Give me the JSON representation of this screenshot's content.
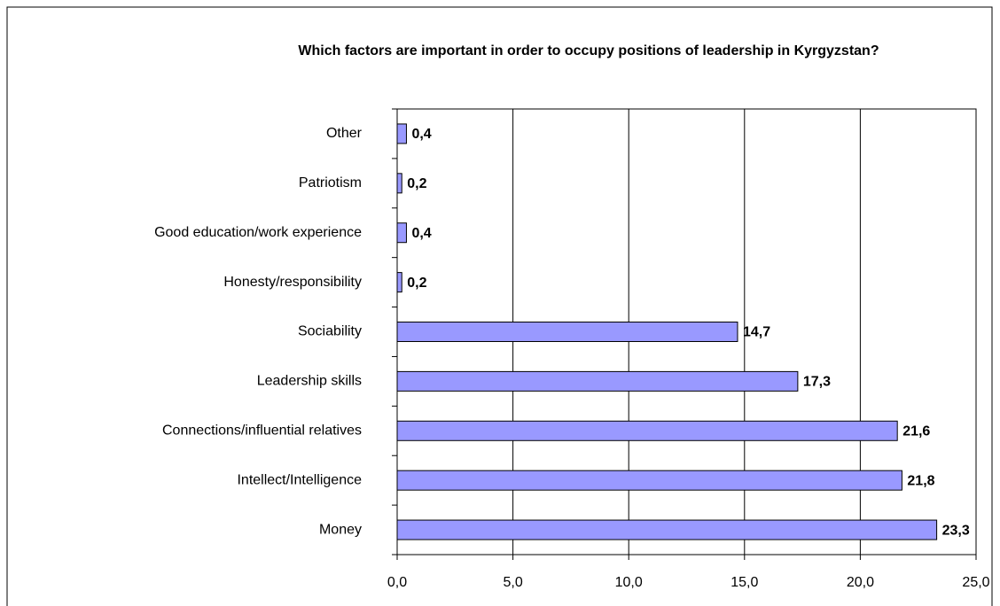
{
  "chart_data": {
    "type": "bar",
    "orientation": "horizontal",
    "title": "Which factors are important in order to occupy positions of leadership in Kyrgyzstan?",
    "categories": [
      "Other",
      "Patriotism",
      "Good education/work experience",
      "Honesty/responsibility",
      "Sociability",
      "Leadership skills",
      "Connections/influential relatives",
      "Intellect/Intelligence",
      "Money"
    ],
    "values": [
      0.4,
      0.2,
      0.4,
      0.2,
      14.7,
      17.3,
      21.6,
      21.8,
      23.3
    ],
    "value_labels": [
      "0,4",
      "0,2",
      "0,4",
      "0,2",
      "14,7",
      "17,3",
      "21,6",
      "21,8",
      "23,3"
    ],
    "color": "#9999ff",
    "xlim": [
      0,
      25
    ],
    "xticks": [
      {
        "value": 0,
        "label": "0,0"
      },
      {
        "value": 5,
        "label": "5,0"
      },
      {
        "value": 10,
        "label": "10,0"
      },
      {
        "value": 15,
        "label": "15,0"
      },
      {
        "value": 20,
        "label": "20,0"
      },
      {
        "value": 25,
        "label": "25,0"
      }
    ],
    "grid": true
  }
}
